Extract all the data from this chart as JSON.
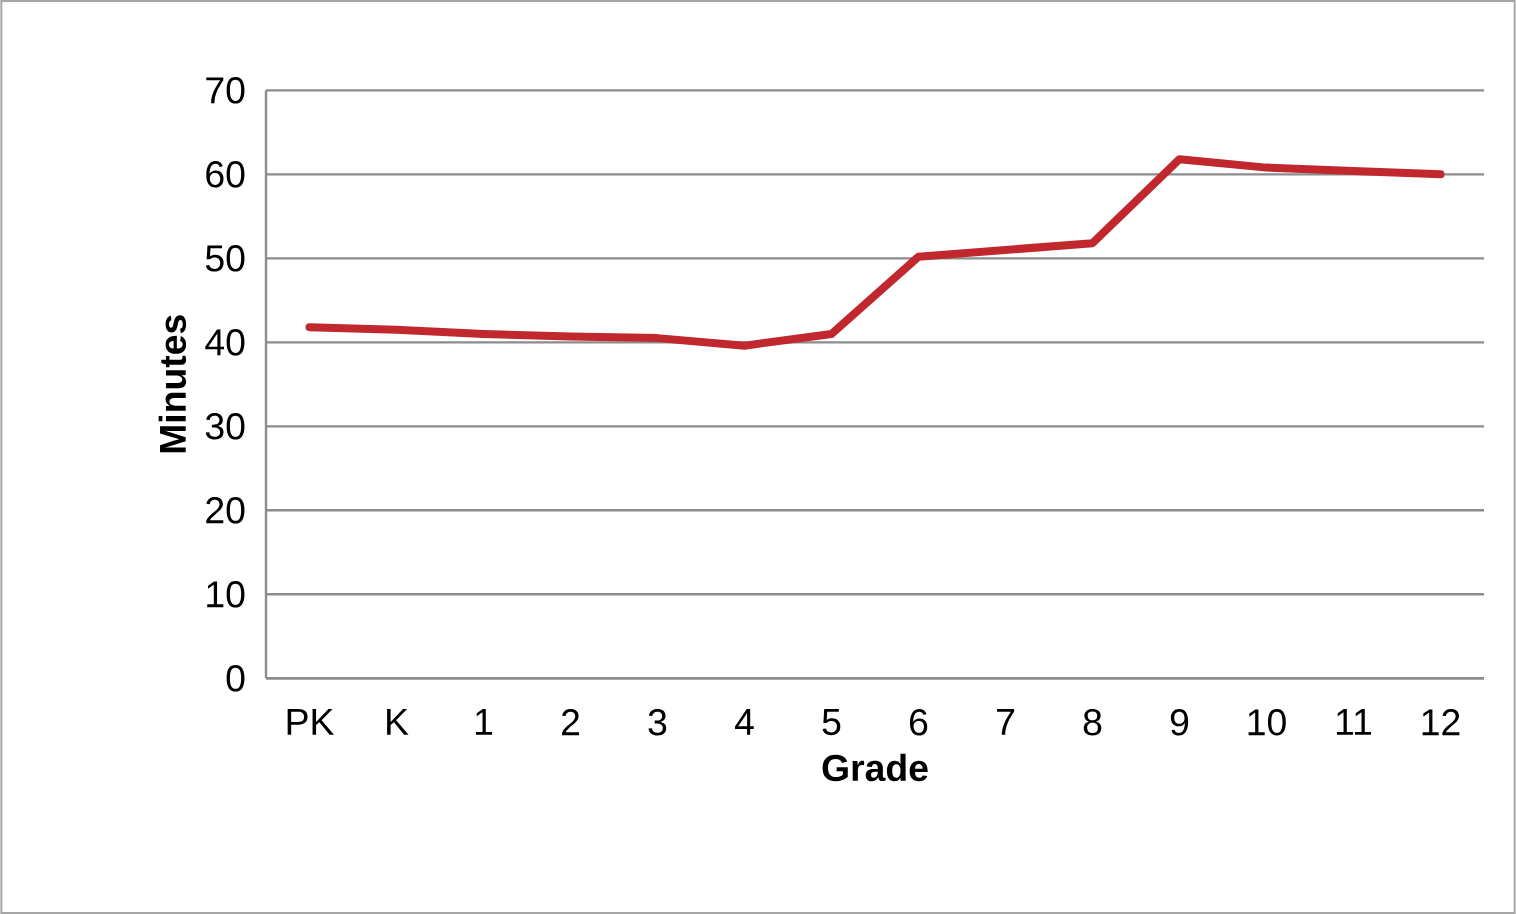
{
  "chart_data": {
    "type": "line",
    "xlabel": "Grade",
    "ylabel": "Minutes",
    "categories": [
      "PK",
      "K",
      "1",
      "2",
      "3",
      "4",
      "5",
      "6",
      "7",
      "8",
      "9",
      "10",
      "11",
      "12"
    ],
    "values": [
      41.8,
      41.5,
      41,
      40.7,
      40.5,
      39.6,
      41,
      50.2,
      51,
      51.8,
      61.8,
      60.8,
      60.4,
      60
    ],
    "color": "#c0282d",
    "ylim": [
      0,
      70
    ],
    "yticks": [
      0,
      10,
      20,
      30,
      40,
      50,
      60,
      70
    ],
    "grid": "y",
    "marker": "none",
    "line_style": "solid"
  }
}
